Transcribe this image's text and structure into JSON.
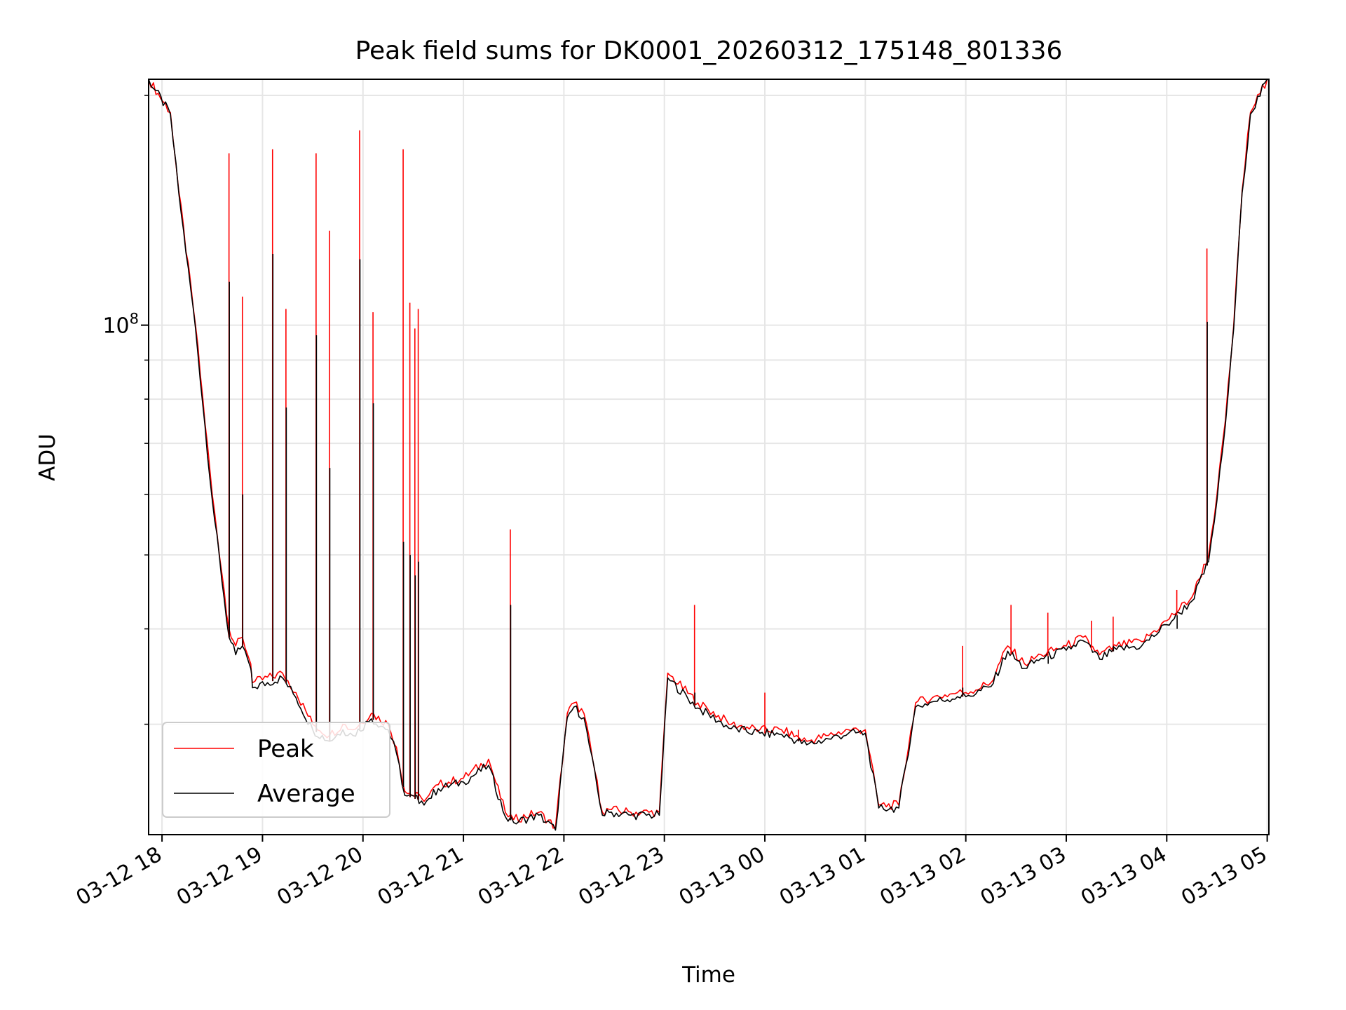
{
  "chart_data": {
    "type": "line",
    "title": "Peak field sums for DK0001_20260312_175148_801336",
    "xlabel": "Time",
    "ylabel": "ADU",
    "y_scale": "log",
    "ylim": [
      21500000,
      210000000
    ],
    "xlim": [
      "2026-03-12 17:52",
      "2026-03-13 05:01"
    ],
    "x_tick_labels": [
      "03-12 18",
      "03-12 19",
      "03-12 20",
      "03-12 21",
      "03-12 22",
      "03-12 23",
      "03-13 00",
      "03-13 01",
      "03-13 02",
      "03-13 03",
      "03-13 04",
      "03-13 05"
    ],
    "y_tick_labels": [
      {
        "value": 100000000,
        "base": "10",
        "exp": "8"
      }
    ],
    "y_minor_ticks": [
      30000000,
      40000000,
      50000000,
      60000000,
      70000000,
      80000000,
      90000000,
      200000000
    ],
    "grid": true,
    "legend": {
      "position": "lower-left"
    },
    "colors": {
      "peak": "#ff0000",
      "average": "#000000",
      "grid": "#e6e6e6"
    },
    "x": [
      "2026-03-12 17:52",
      "2026-03-12 18:05",
      "2026-03-12 18:10",
      "2026-03-12 18:20",
      "2026-03-12 18:30",
      "2026-03-12 18:40",
      "2026-03-12 18:44",
      "2026-03-12 18:48",
      "2026-03-12 18:53",
      "2026-03-12 18:54",
      "2026-03-12 19:12",
      "2026-03-12 19:20",
      "2026-03-12 19:30",
      "2026-03-12 19:40",
      "2026-03-12 19:48",
      "2026-03-12 19:54",
      "2026-03-12 20:05",
      "2026-03-12 20:15",
      "2026-03-12 20:20",
      "2026-03-12 20:25",
      "2026-03-12 20:35",
      "2026-03-12 20:38",
      "2026-03-12 20:45",
      "2026-03-12 21:00",
      "2026-03-12 21:15",
      "2026-03-12 21:25",
      "2026-03-12 21:30",
      "2026-03-12 21:45",
      "2026-03-12 21:55",
      "2026-03-12 22:02",
      "2026-03-12 22:06",
      "2026-03-12 22:12",
      "2026-03-12 22:23",
      "2026-03-12 22:27",
      "2026-03-12 22:40",
      "2026-03-12 22:57",
      "2026-03-12 23:02",
      "2026-03-12 23:20",
      "2026-03-12 23:40",
      "2026-03-12 23:57",
      "2026-03-13 00:10",
      "2026-03-13 00:25",
      "2026-03-13 00:38",
      "2026-03-13 00:50",
      "2026-03-13 01:00",
      "2026-03-13 01:08",
      "2026-03-13 01:20",
      "2026-03-13 01:30",
      "2026-03-13 01:40",
      "2026-03-13 01:55",
      "2026-03-13 02:00",
      "2026-03-13 02:15",
      "2026-03-13 02:25",
      "2026-03-13 02:35",
      "2026-03-13 02:45",
      "2026-03-13 03:00",
      "2026-03-13 03:10",
      "2026-03-13 03:20",
      "2026-03-13 03:30",
      "2026-03-13 03:45",
      "2026-03-13 04:00",
      "2026-03-13 04:15",
      "2026-03-13 04:25",
      "2026-03-13 04:30",
      "2026-03-13 04:35",
      "2026-03-13 04:40",
      "2026-03-13 04:45",
      "2026-03-13 04:50",
      "2026-03-13 05:00"
    ],
    "series": [
      {
        "name": "Peak",
        "values": [
          210000000,
          190000000,
          150000000,
          100000000,
          60000000,
          40000000,
          38000000,
          39000000,
          36000000,
          34000000,
          35000000,
          33000000,
          30000000,
          29000000,
          30000000,
          29500000,
          31000000,
          30000000,
          28000000,
          24500000,
          24000000,
          24000000,
          25000000,
          25500000,
          27000000,
          23000000,
          22500000,
          23000000,
          22000000,
          31000000,
          32000000,
          31000000,
          23000000,
          23200000,
          23000000,
          23000000,
          35000000,
          32000000,
          30000000,
          29500000,
          29500000,
          28500000,
          29000000,
          29500000,
          29500000,
          23500000,
          23500000,
          32000000,
          32500000,
          33000000,
          33000000,
          34000000,
          38000000,
          36000000,
          37000000,
          38000000,
          39000000,
          37000000,
          38000000,
          38500000,
          41000000,
          44000000,
          50000000,
          60000000,
          75000000,
          100000000,
          150000000,
          190000000,
          210000000
        ]
      },
      {
        "name": "Average",
        "values": [
          210000000,
          189000000,
          149000000,
          99000000,
          59000000,
          39000000,
          37000000,
          38000000,
          35500000,
          33500000,
          34500000,
          32500000,
          29500000,
          28500000,
          29500000,
          29000000,
          30500000,
          29500000,
          27500000,
          24200000,
          23800000,
          23800000,
          24700000,
          25200000,
          26500000,
          22700000,
          22300000,
          22800000,
          21800000,
          30600000,
          31600000,
          30600000,
          22800000,
          23000000,
          22800000,
          22800000,
          34500000,
          31500000,
          29600000,
          29200000,
          29100000,
          28200000,
          28700000,
          29200000,
          29200000,
          23300000,
          23300000,
          31600000,
          32100000,
          32600000,
          32600000,
          33600000,
          37400000,
          35500000,
          36600000,
          37500000,
          38600000,
          36500000,
          37600000,
          38000000,
          40500000,
          43500000,
          49000000,
          59000000,
          74000000,
          99000000,
          149000000,
          189000000,
          210000000
        ]
      }
    ],
    "spikes": {
      "x": [
        "2026-03-12 18:40",
        "2026-03-12 18:48",
        "2026-03-12 19:06",
        "2026-03-12 19:14",
        "2026-03-12 19:32",
        "2026-03-12 19:40",
        "2026-03-12 19:58",
        "2026-03-12 20:06",
        "2026-03-12 20:24",
        "2026-03-12 20:28",
        "2026-03-12 20:31",
        "2026-03-12 20:33",
        "2026-03-12 21:28",
        "2026-03-12 23:18",
        "2026-03-13 00:00",
        "2026-03-13 00:20",
        "2026-03-13 01:58",
        "2026-03-13 02:27",
        "2026-03-13 02:49",
        "2026-03-13 03:15",
        "2026-03-13 03:28",
        "2026-03-13 04:06",
        "2026-03-13 04:24"
      ],
      "peak": [
        168000000,
        109000000,
        170000000,
        105000000,
        168000000,
        133000000,
        180000000,
        104000000,
        170000000,
        107000000,
        99000000,
        105000000,
        54000000,
        43000000,
        33000000,
        29500000,
        38000000,
        43000000,
        42000000,
        41000000,
        41500000,
        45000000,
        126000000
      ],
      "average": [
        114000000,
        60000000,
        124000000,
        78000000,
        97000000,
        65000000,
        122000000,
        79000000,
        52000000,
        50000000,
        47000000,
        49000000,
        43000000,
        33000000,
        29000000,
        28700000,
        33500000,
        37000000,
        36000000,
        37500000,
        38000000,
        40000000,
        101000000
      ]
    }
  }
}
